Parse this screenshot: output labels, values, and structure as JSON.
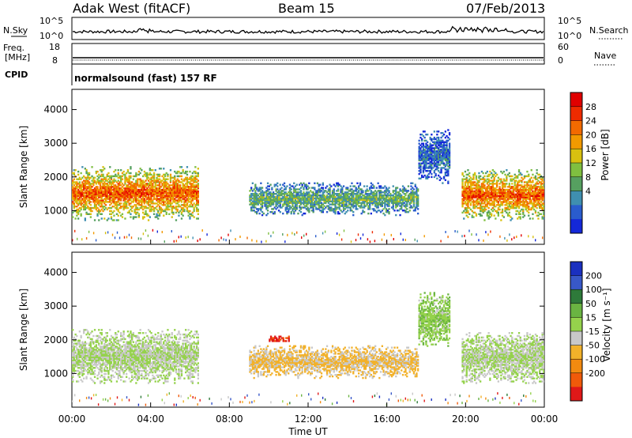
{
  "header": {
    "station": "Adak West (fitACF)",
    "beam": "Beam 15",
    "date": "07/Feb/2013"
  },
  "top_panels": {
    "nsky_label": "N.Sky",
    "nsky_ticks": [
      "10^5",
      "10^0"
    ],
    "nsearch_label": "N.Search",
    "nsearch_ticks": [
      "10^5",
      "10^0"
    ],
    "freq_label": "Freq.",
    "freq_unit": "[MHz]",
    "freq_ticks": [
      "18",
      "8"
    ],
    "nave_label": "Nave",
    "nave_ticks": [
      "60",
      "0"
    ],
    "cpid_label": "CPID",
    "cpid_text": "normalsound (fast) 157 RF"
  },
  "x_axis": {
    "label": "Time UT",
    "ticks": [
      "00:00",
      "04:00",
      "08:00",
      "12:00",
      "16:00",
      "20:00",
      "00:00"
    ]
  },
  "colors": {
    "power": [
      "#1428d8",
      "#2a5ccd",
      "#3f8fb0",
      "#56a060",
      "#7fbf40",
      "#d8c010",
      "#f29a00",
      "#f26a00",
      "#ee2b00",
      "#e00000"
    ],
    "velocity": [
      "#1a30c0",
      "#3858c8",
      "#2e7a3a",
      "#6ab442",
      "#95d24c",
      "#c8c8c8",
      "#f2b12a",
      "#f28a10",
      "#f05a0a",
      "#e01818"
    ]
  },
  "chart_data": [
    {
      "type": "heatmap",
      "name": "power",
      "ylabel": "Slant Range [km]",
      "yticks": [
        1000,
        2000,
        3000,
        4000
      ],
      "ylim": [
        0,
        4600
      ],
      "xlim_hours": [
        0,
        24
      ],
      "colorbar": {
        "label": "Power [dB]",
        "ticks": [
          "28",
          "24",
          "20",
          "16",
          "12",
          "8",
          "4"
        ],
        "range": [
          0,
          30
        ]
      },
      "regions": [
        {
          "t0": 0.0,
          "t1": 6.4,
          "r0": 700,
          "r1": 2300,
          "level": 24
        },
        {
          "t0": 9.0,
          "t1": 17.6,
          "r0": 850,
          "r1": 1800,
          "level": 12
        },
        {
          "t0": 17.6,
          "t1": 19.2,
          "r0": 1800,
          "r1": 3400,
          "level": 6
        },
        {
          "t0": 19.8,
          "t1": 24.0,
          "r0": 700,
          "r1": 2200,
          "level": 24
        }
      ]
    },
    {
      "type": "heatmap",
      "name": "velocity",
      "ylabel": "Slant Range [km]",
      "yticks": [
        1000,
        2000,
        3000,
        4000
      ],
      "ylim": [
        0,
        4600
      ],
      "xlim_hours": [
        0,
        24
      ],
      "colorbar": {
        "label": "Velocity [m s⁻¹]",
        "ticks": [
          "200",
          "100",
          "50",
          "15",
          "-15",
          "-50",
          "-100",
          "-200"
        ],
        "range": [
          -250,
          250
        ]
      },
      "regions": [
        {
          "t0": 0.0,
          "t1": 6.4,
          "r0": 700,
          "r1": 2300,
          "value": 0
        },
        {
          "t0": 9.0,
          "t1": 17.6,
          "r0": 850,
          "r1": 1800,
          "value": -60
        },
        {
          "t0": 10.0,
          "t1": 11.0,
          "r0": 1900,
          "r1": 2100,
          "value": -220
        },
        {
          "t0": 17.6,
          "t1": 19.2,
          "r0": 1800,
          "r1": 3400,
          "value": 30
        },
        {
          "t0": 19.8,
          "t1": 24.0,
          "r0": 700,
          "r1": 2200,
          "value": 0
        }
      ]
    }
  ]
}
